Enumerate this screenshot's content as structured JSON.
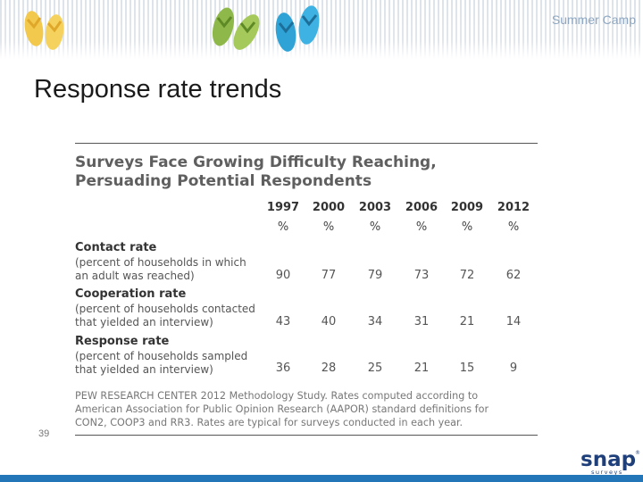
{
  "header": {
    "text": "Summer Camp"
  },
  "slide": {
    "title": "Response rate trends",
    "page_number": "39"
  },
  "figure": {
    "title_line1": "Surveys Face Growing Difficulty Reaching,",
    "title_line2": "Persuading Potential Respondents",
    "years": [
      "1997",
      "2000",
      "2003",
      "2006",
      "2009",
      "2012"
    ],
    "unit": "%",
    "rows": [
      {
        "label": "Contact rate",
        "desc_line1": "(percent of households in which",
        "desc_line2": "an adult was reached)",
        "values": [
          "90",
          "77",
          "79",
          "73",
          "72",
          "62"
        ]
      },
      {
        "label": "Cooperation rate",
        "desc_line1": "(percent of households contacted",
        "desc_line2": "that yielded an interview)",
        "values": [
          "43",
          "40",
          "34",
          "31",
          "21",
          "14"
        ]
      },
      {
        "label": "Response rate",
        "desc_line1": "(percent of households sampled",
        "desc_line2": "that yielded an interview)",
        "values": [
          "36",
          "28",
          "25",
          "21",
          "15",
          "9"
        ]
      }
    ],
    "source_line1": "PEW RESEARCH CENTER 2012 Methodology Study. Rates computed according to",
    "source_line2": "American Association for Public Opinion Research (AAPOR) standard definitions for",
    "source_line3": "CON2, COOP3 and RR3. Rates are typical for surveys conducted in each year."
  },
  "logo": {
    "text": "snap",
    "sub": "surveys",
    "mark": "®"
  },
  "colors": {
    "accent_blue": "#2376b8",
    "flop_yellow": "#f2c94c",
    "flop_green": "#8fb84a",
    "flop_blue": "#2fa3d6"
  }
}
